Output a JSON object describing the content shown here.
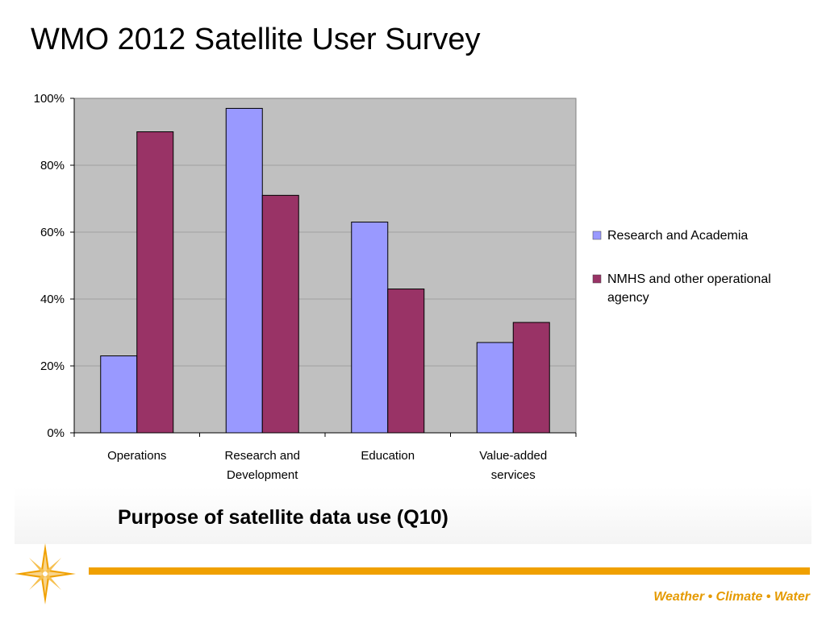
{
  "slide": {
    "title": "WMO 2012 Satellite User Survey",
    "caption": "Purpose of satellite data use (Q10)",
    "tagline": "Weather • Climate • Water"
  },
  "colors": {
    "research": "#9999ff",
    "nmhs": "#993366",
    "plot_bg": "#c0c0c0",
    "accent_orange": "#f0a000"
  },
  "chart_data": {
    "type": "bar",
    "categories": [
      [
        "Operations"
      ],
      [
        "Research and",
        "Development"
      ],
      [
        "Education"
      ],
      [
        "Value-added",
        "services"
      ]
    ],
    "series": [
      {
        "name": "Research and Academia",
        "legend_lines": [
          "Research and Academia"
        ],
        "values": [
          23,
          97,
          63,
          27
        ]
      },
      {
        "name": "NMHS and other operational agency",
        "legend_lines": [
          "NMHS and other operational",
          "agency"
        ],
        "values": [
          90,
          71,
          43,
          33
        ]
      }
    ],
    "yticks": [
      "0%",
      "20%",
      "40%",
      "60%",
      "80%",
      "100%"
    ],
    "ylim": [
      0,
      100
    ],
    "grid": true,
    "legend": "right"
  }
}
